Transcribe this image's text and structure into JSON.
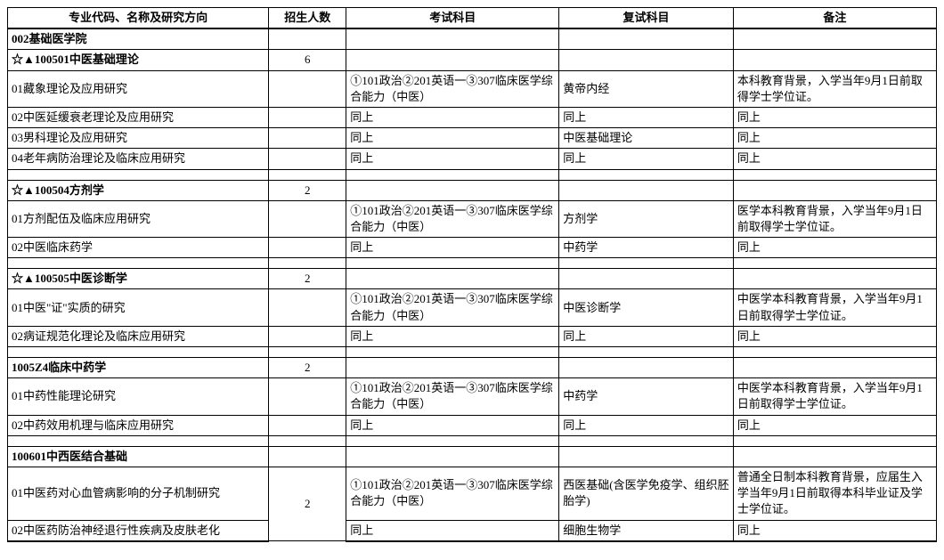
{
  "headers": {
    "major": "专业代码、名称及研究方向",
    "count": "招生人数",
    "exam": "考试科目",
    "retest": "复试科目",
    "remark": "备注"
  },
  "rows": [
    {
      "major": "002基础医学院",
      "count": "",
      "exam": "",
      "retest": "",
      "remark": "",
      "bold": true
    },
    {
      "major": "☆▲100501中医基础理论",
      "count": "6",
      "exam": "",
      "retest": "",
      "remark": "",
      "bold": true
    },
    {
      "major": "01藏象理论及应用研究",
      "count": "",
      "exam": "①101政治②201英语一③307临床医学综合能力（中医）",
      "retest": "黄帝内经",
      "remark": "本科教育背景，入学当年9月1日前取得学士学位证。"
    },
    {
      "major": "02中医延缓衰老理论及应用研究",
      "count": "",
      "exam": "同上",
      "retest": "同上",
      "remark": "同上"
    },
    {
      "major": "03男科理论及应用研究",
      "count": "",
      "exam": "同上",
      "retest": "中医基础理论",
      "remark": "同上"
    },
    {
      "major": "04老年病防治理论及临床应用研究",
      "count": "",
      "exam": "同上",
      "retest": "同上",
      "remark": "同上"
    },
    {
      "spacer": true
    },
    {
      "major": "☆▲100504方剂学",
      "count": "2",
      "exam": "",
      "retest": "",
      "remark": "",
      "bold": true
    },
    {
      "major": "01方剂配伍及临床应用研究",
      "count": "",
      "exam": "①101政治②201英语一③307临床医学综合能力（中医）",
      "retest": "方剂学",
      "remark": "医学本科教育背景，入学当年9月1日前取得学士学位证。"
    },
    {
      "major": "02中医临床药学",
      "count": "",
      "exam": "同上",
      "retest": "中药学",
      "remark": "同上"
    },
    {
      "spacer": true
    },
    {
      "major": "☆▲100505中医诊断学",
      "count": "2",
      "exam": "",
      "retest": "",
      "remark": "",
      "bold": true
    },
    {
      "major": "01中医\"证\"实质的研究",
      "count": "",
      "exam": "①101政治②201英语一③307临床医学综合能力（中医）",
      "retest": "中医诊断学",
      "remark": "中医学本科教育背景，入学当年9月1日前取得学士学位证。"
    },
    {
      "major": "02病证规范化理论及临床应用研究",
      "count": "",
      "exam": "同上",
      "retest": "同上",
      "remark": "同上"
    },
    {
      "spacer": true
    },
    {
      "major": "1005Z4临床中药学",
      "count": "2",
      "exam": "",
      "retest": "",
      "remark": "",
      "bold": true
    },
    {
      "major": "01中药性能理论研究",
      "count": "",
      "exam": "①101政治②201英语一③307临床医学综合能力（中医）",
      "retest": "中药学",
      "remark": "中医学本科教育背景，入学当年9月1日前取得学士学位证。"
    },
    {
      "major": "02中药效用机理与临床应用研究",
      "count": "",
      "exam": "同上",
      "retest": "同上",
      "remark": "同上"
    },
    {
      "spacer": true
    },
    {
      "major": "100601中西医结合基础",
      "count": "",
      "exam": "",
      "retest": "",
      "remark": "",
      "bold": true
    },
    {
      "major": "01中医药对心血管病影响的分子机制研究",
      "count": "2",
      "count_rowspan": 2,
      "exam": "①101政治②201英语一③307临床医学综合能力（中医）",
      "retest": "西医基础(含医学免疫学、组织胚胎学)",
      "remark": "普通全日制本科教育背景，应届生入学当年9月1日前取得本科毕业证及学士学位证。"
    },
    {
      "major": "02中医药防治神经退行性疾病及皮肤老化",
      "count_skip": true,
      "exam": "同上",
      "retest": "细胞生物学",
      "remark": "同上",
      "last": true
    }
  ]
}
